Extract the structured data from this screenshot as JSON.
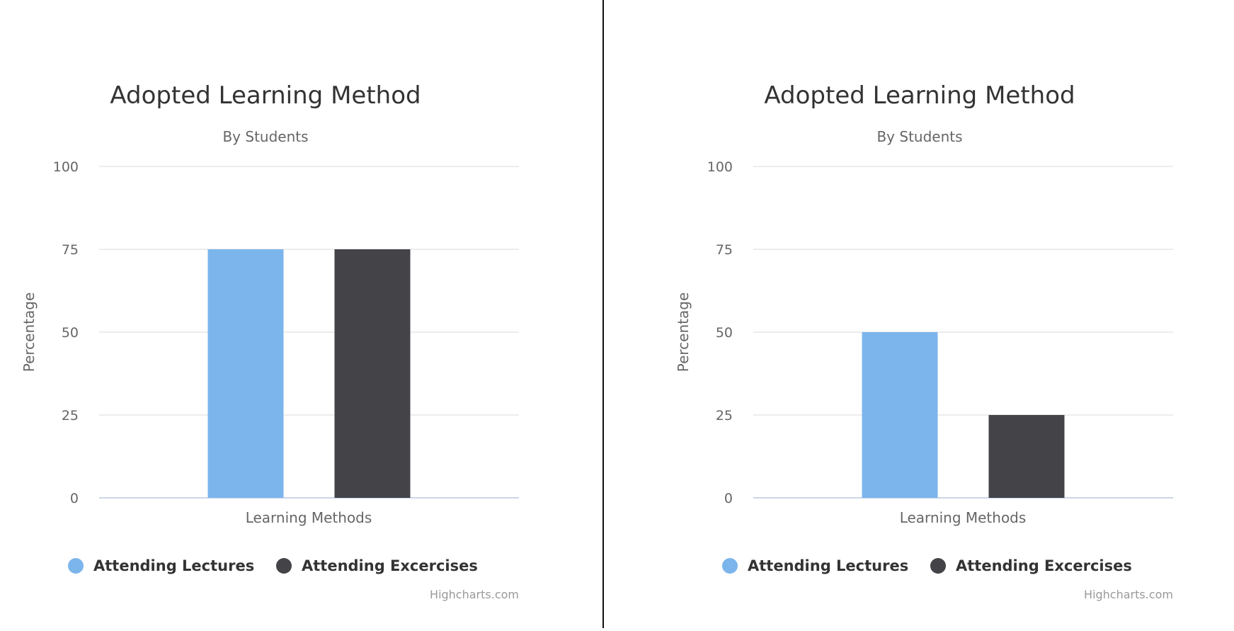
{
  "chart_data": [
    {
      "type": "bar",
      "title": "Adopted Learning Method",
      "subtitle": "By Students",
      "xlabel": "Learning Methods",
      "ylabel": "Percentage",
      "ylim": [
        0,
        100
      ],
      "yticks": [
        "0",
        "25",
        "50",
        "75",
        "100"
      ],
      "grid": true,
      "legend_position": "bottom",
      "series": [
        {
          "name": "Attending Lectures",
          "values": [
            75
          ],
          "color": "#7cb5ec"
        },
        {
          "name": "Attending Excercises",
          "values": [
            75
          ],
          "color": "#434348"
        }
      ],
      "credits": "Highcharts.com"
    },
    {
      "type": "bar",
      "title": "Adopted Learning Method",
      "subtitle": "By Students",
      "xlabel": "Learning Methods",
      "ylabel": "Percentage",
      "ylim": [
        0,
        100
      ],
      "yticks": [
        "0",
        "25",
        "50",
        "75",
        "100"
      ],
      "grid": true,
      "legend_position": "bottom",
      "series": [
        {
          "name": "Attending Lectures",
          "values": [
            50
          ],
          "color": "#7cb5ec"
        },
        {
          "name": "Attending Excercises",
          "values": [
            25
          ],
          "color": "#434348"
        }
      ],
      "credits": "Highcharts.com"
    }
  ]
}
